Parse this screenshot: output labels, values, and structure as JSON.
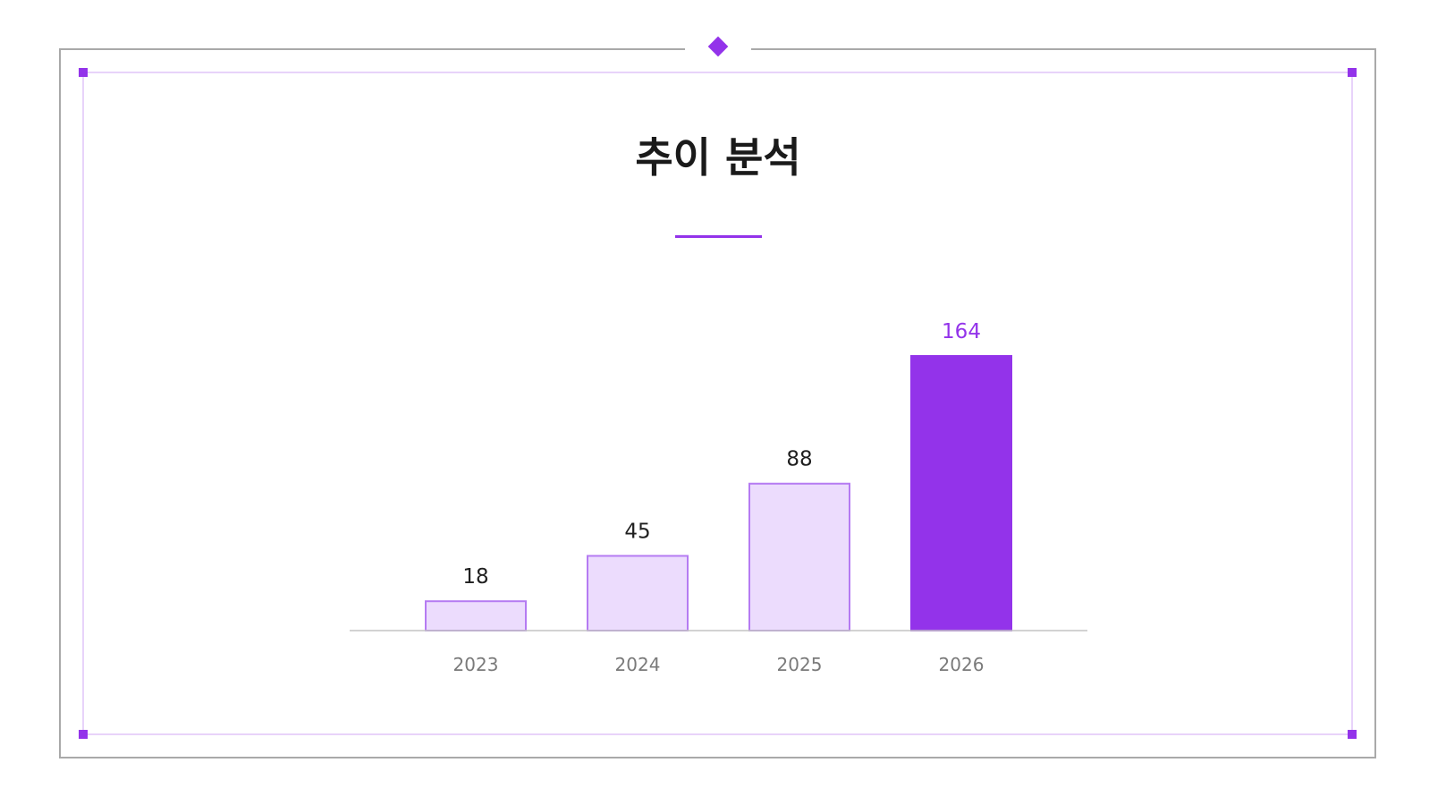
{
  "slide": {
    "title": "추이 분석"
  },
  "colors": {
    "accent": "#9333ea",
    "bar_light_fill": "#ecdcfd",
    "bar_light_stroke": "#b57bf2",
    "frame_outer": "#a9a9a9",
    "frame_inner": "#d9b6f7",
    "axis": "#c4c4c4"
  },
  "chart_data": {
    "type": "bar",
    "title": "",
    "xlabel": "",
    "ylabel": "",
    "categories": [
      "2023",
      "2024",
      "2025",
      "2026"
    ],
    "values": [
      18,
      45,
      88,
      164
    ],
    "highlight_index": 3,
    "grid": false,
    "data_labels": true
  }
}
